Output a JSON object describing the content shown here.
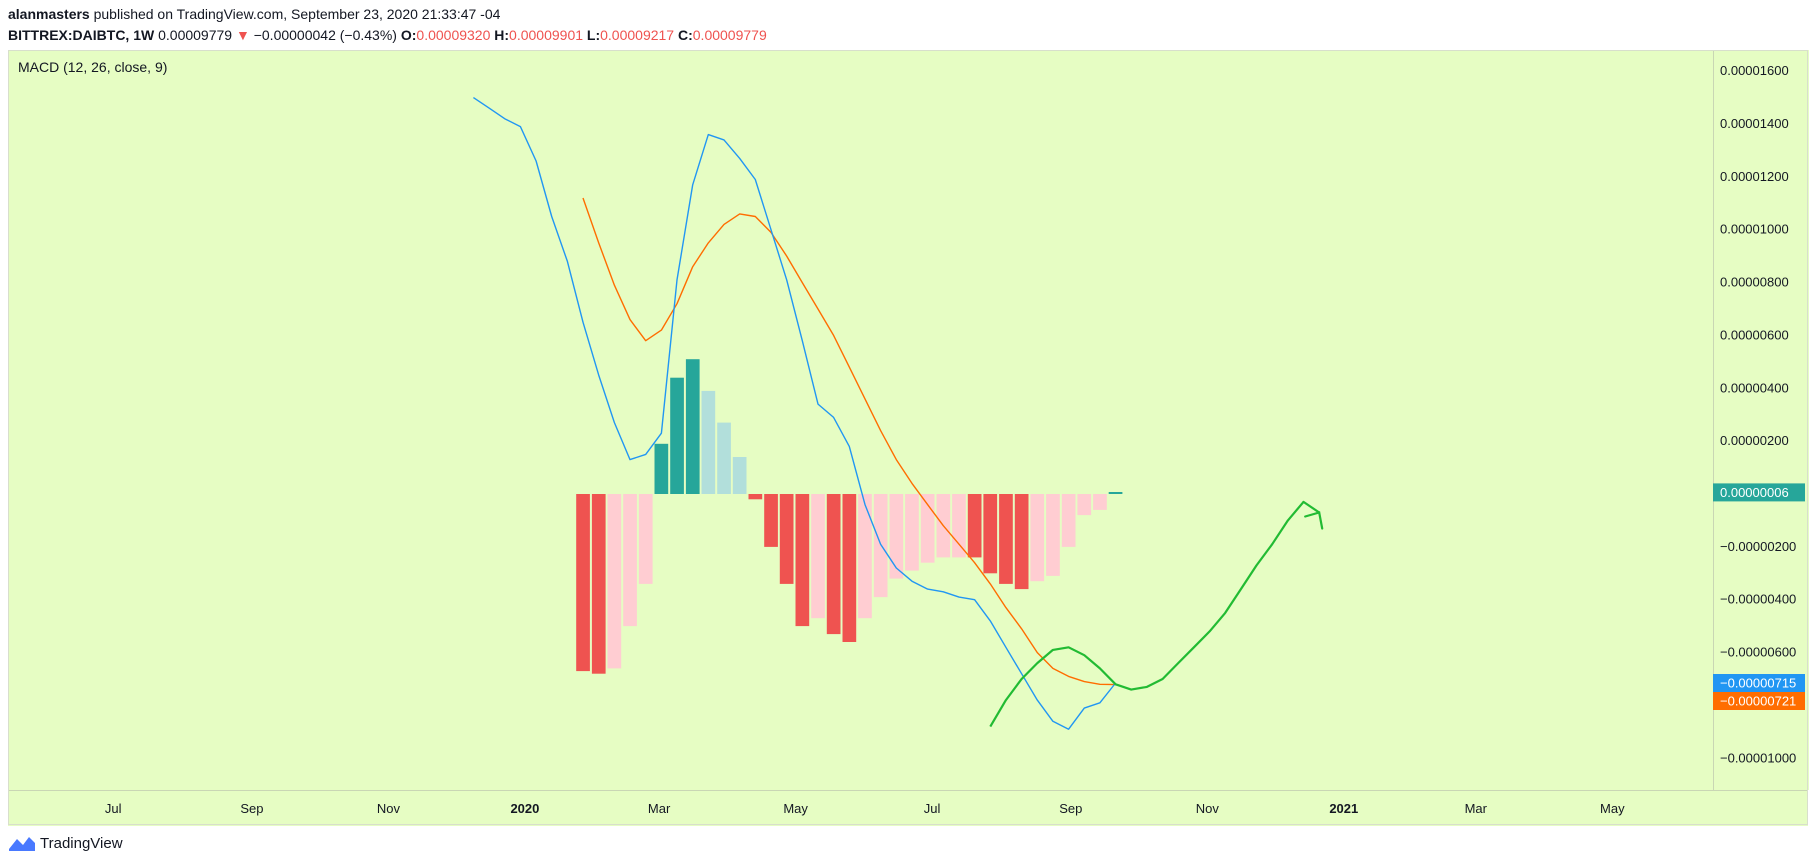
{
  "header": {
    "author": "alanmasters",
    "published_text": "published on TradingView.com, September 23, 2020 21:33:47 -04",
    "symbol": "BITTREX:DAIBTC, 1W",
    "last_price": "0.00009779",
    "change": "−0.00000042 (−0.43%)",
    "open_label": "O:",
    "open_value": "0.00009320",
    "high_label": "H:",
    "high_value": "0.00009901",
    "low_label": "L:",
    "low_value": "0.00009217",
    "close_label": "C:",
    "close_value": "0.00009779"
  },
  "indicator_label": "MACD (12, 26, close, 9)",
  "footer": {
    "brand": "TradingView"
  },
  "colors": {
    "background": "#e6fdc3",
    "macd_line": "#2196f3",
    "signal_line": "#ff6d00",
    "hist_up_strong": "#26a69a",
    "hist_up_weak": "#b2dfdb",
    "hist_down_strong": "#ef5350",
    "hist_down_weak": "#ffcdd2",
    "annotation": "#22bb33"
  },
  "chart_data": {
    "type": "line",
    "y_ticks": [
      {
        "value": 1.6e-05,
        "label": "0.00001600"
      },
      {
        "value": 1.4e-05,
        "label": "0.00001400"
      },
      {
        "value": 1.2e-05,
        "label": "0.00001200"
      },
      {
        "value": 1e-05,
        "label": "0.00001000"
      },
      {
        "value": 8e-06,
        "label": "0.00000800"
      },
      {
        "value": 6e-06,
        "label": "0.00000600"
      },
      {
        "value": 4e-06,
        "label": "0.00000400"
      },
      {
        "value": 2e-06,
        "label": "0.00000200"
      },
      {
        "value": -2e-06,
        "label": "−0.00000200"
      },
      {
        "value": -4e-06,
        "label": "−0.00000400"
      },
      {
        "value": -6e-06,
        "label": "−0.00000600"
      },
      {
        "value": -1e-05,
        "label": "−0.00001000"
      }
    ],
    "ylim": [
      -1.12e-05,
      1.68e-05
    ],
    "x_ticks": [
      {
        "date": "2019-07-01",
        "label": "Jul",
        "bold": false
      },
      {
        "date": "2019-09-01",
        "label": "Sep",
        "bold": false
      },
      {
        "date": "2019-11-01",
        "label": "Nov",
        "bold": false
      },
      {
        "date": "2020-01-01",
        "label": "2020",
        "bold": true
      },
      {
        "date": "2020-03-01",
        "label": "Mar",
        "bold": false
      },
      {
        "date": "2020-05-01",
        "label": "May",
        "bold": false
      },
      {
        "date": "2020-07-01",
        "label": "Jul",
        "bold": false
      },
      {
        "date": "2020-09-01",
        "label": "Sep",
        "bold": false
      },
      {
        "date": "2020-11-01",
        "label": "Nov",
        "bold": false
      },
      {
        "date": "2021-01-01",
        "label": "2021",
        "bold": true
      },
      {
        "date": "2021-03-01",
        "label": "Mar",
        "bold": false
      },
      {
        "date": "2021-05-01",
        "label": "May",
        "bold": false
      }
    ],
    "xlim": [
      "2019-05-15",
      "2021-06-15"
    ],
    "macd": {
      "dates": [
        "2019-12-09",
        "2019-12-16",
        "2019-12-23",
        "2019-12-30",
        "2020-01-06",
        "2020-01-13",
        "2020-01-20",
        "2020-01-27",
        "2020-02-03",
        "2020-02-10",
        "2020-02-17",
        "2020-02-24",
        "2020-03-02",
        "2020-03-09",
        "2020-03-16",
        "2020-03-23",
        "2020-03-30",
        "2020-04-06",
        "2020-04-13",
        "2020-04-20",
        "2020-04-27",
        "2020-05-04",
        "2020-05-11",
        "2020-05-18",
        "2020-05-25",
        "2020-06-01",
        "2020-06-08",
        "2020-06-15",
        "2020-06-22",
        "2020-06-29",
        "2020-07-06",
        "2020-07-13",
        "2020-07-20",
        "2020-07-27",
        "2020-08-03",
        "2020-08-10",
        "2020-08-17",
        "2020-08-24",
        "2020-08-31",
        "2020-09-07",
        "2020-09-14",
        "2020-09-21"
      ],
      "values": [
        1.5e-05,
        1.46e-05,
        1.42e-05,
        1.39e-05,
        1.26e-05,
        1.05e-05,
        8.8e-06,
        6.5e-06,
        4.5e-06,
        2.7e-06,
        1.3e-06,
        1.5e-06,
        2.3e-06,
        8.1e-06,
        1.17e-05,
        1.36e-05,
        1.34e-05,
        1.27e-05,
        1.19e-05,
        1e-05,
        8.1e-06,
        5.8e-06,
        3.4e-06,
        2.9e-06,
        1.8e-06,
        -4e-07,
        -1.9e-06,
        -2.8e-06,
        -3.3e-06,
        -3.6e-06,
        -3.7e-06,
        -3.9e-06,
        -4e-06,
        -4.8e-06,
        -5.8e-06,
        -6.8e-06,
        -7.8e-06,
        -8.6e-06,
        -8.9e-06,
        -8.1e-06,
        -7.9e-06,
        -7.15e-06
      ]
    },
    "signal": {
      "dates": [
        "2020-01-27",
        "2020-02-03",
        "2020-02-10",
        "2020-02-17",
        "2020-02-24",
        "2020-03-02",
        "2020-03-09",
        "2020-03-16",
        "2020-03-23",
        "2020-03-30",
        "2020-04-06",
        "2020-04-13",
        "2020-04-20",
        "2020-04-27",
        "2020-05-04",
        "2020-05-11",
        "2020-05-18",
        "2020-05-25",
        "2020-06-01",
        "2020-06-08",
        "2020-06-15",
        "2020-06-22",
        "2020-06-29",
        "2020-07-06",
        "2020-07-13",
        "2020-07-20",
        "2020-07-27",
        "2020-08-03",
        "2020-08-10",
        "2020-08-17",
        "2020-08-24",
        "2020-08-31",
        "2020-09-07",
        "2020-09-14",
        "2020-09-21"
      ],
      "values": [
        1.12e-05,
        9.5e-06,
        7.9e-06,
        6.6e-06,
        5.8e-06,
        6.2e-06,
        7.2e-06,
        8.6e-06,
        9.5e-06,
        1.02e-05,
        1.06e-05,
        1.05e-05,
        9.9e-06,
        9e-06,
        8e-06,
        7e-06,
        6e-06,
        4.8e-06,
        3.6e-06,
        2.4e-06,
        1.3e-06,
        4e-07,
        -4e-07,
        -1.2e-06,
        -1.9e-06,
        -2.6e-06,
        -3.4e-06,
        -4.3e-06,
        -5.1e-06,
        -6e-06,
        -6.6e-06,
        -6.9e-06,
        -7.1e-06,
        -7.2e-06,
        -7.21e-06
      ]
    },
    "histogram": {
      "dates": [
        "2020-01-27",
        "2020-02-03",
        "2020-02-10",
        "2020-02-17",
        "2020-02-24",
        "2020-03-02",
        "2020-03-09",
        "2020-03-16",
        "2020-03-23",
        "2020-03-30",
        "2020-04-06",
        "2020-04-13",
        "2020-04-20",
        "2020-04-27",
        "2020-05-04",
        "2020-05-11",
        "2020-05-18",
        "2020-05-25",
        "2020-06-01",
        "2020-06-08",
        "2020-06-15",
        "2020-06-22",
        "2020-06-29",
        "2020-07-06",
        "2020-07-13",
        "2020-07-20",
        "2020-07-27",
        "2020-08-03",
        "2020-08-10",
        "2020-08-17",
        "2020-08-24",
        "2020-08-31",
        "2020-09-07",
        "2020-09-14",
        "2020-09-21"
      ],
      "values": [
        -6.7e-06,
        -6.8e-06,
        -6.6e-06,
        -5e-06,
        -3.4e-06,
        1.9e-06,
        4.4e-06,
        5.1e-06,
        3.9e-06,
        2.7e-06,
        1.4e-06,
        -2e-07,
        -2e-06,
        -3.4e-06,
        -5e-06,
        -4.7e-06,
        -5.3e-06,
        -5.6e-06,
        -4.7e-06,
        -3.9e-06,
        -3.2e-06,
        -2.9e-06,
        -2.6e-06,
        -2.4e-06,
        -2.4e-06,
        -2.4e-06,
        -3e-06,
        -3.4e-06,
        -3.6e-06,
        -3.3e-06,
        -3.1e-06,
        -2e-06,
        -8e-07,
        -6e-07,
        6e-08
      ],
      "colors": [
        "down_strong",
        "down_strong",
        "down_weak",
        "down_weak",
        "down_weak",
        "up_strong",
        "up_strong",
        "up_strong",
        "up_weak",
        "up_weak",
        "up_weak",
        "down_strong",
        "down_strong",
        "down_strong",
        "down_strong",
        "down_weak",
        "down_strong",
        "down_strong",
        "down_weak",
        "down_weak",
        "down_weak",
        "down_weak",
        "down_weak",
        "down_weak",
        "down_weak",
        "down_strong",
        "down_strong",
        "down_strong",
        "down_strong",
        "down_weak",
        "down_weak",
        "down_weak",
        "down_weak",
        "down_weak",
        "up_strong"
      ]
    },
    "last_value_labels": [
      {
        "value": 6e-08,
        "label": "0.00000006",
        "color": "#26a69a"
      },
      {
        "value": -7.15e-06,
        "label": "−0.00000715",
        "color": "#2196f3"
      },
      {
        "value": -7.21e-06,
        "label": "−0.00000721",
        "color": "#ff6d00"
      }
    ],
    "annotation_curve": {
      "dates": [
        "2020-07-27",
        "2020-08-03",
        "2020-08-10",
        "2020-08-17",
        "2020-08-24",
        "2020-08-31",
        "2020-09-07",
        "2020-09-14",
        "2020-09-21",
        "2020-09-28",
        "2020-10-05",
        "2020-10-12",
        "2020-10-19",
        "2020-10-26",
        "2020-11-02",
        "2020-11-09",
        "2020-11-16",
        "2020-11-23",
        "2020-11-30",
        "2020-12-07",
        "2020-12-14"
      ],
      "values": [
        -8.8e-06,
        -7.8e-06,
        -7e-06,
        -6.4e-06,
        -5.9e-06,
        -5.8e-06,
        -6.1e-06,
        -6.6e-06,
        -7.2e-06,
        -7.4e-06,
        -7.3e-06,
        -7e-06,
        -6.4e-06,
        -5.8e-06,
        -5.2e-06,
        -4.5e-06,
        -3.6e-06,
        -2.7e-06,
        -1.9e-06,
        -1e-06,
        -3e-07
      ],
      "arrow_tip": {
        "date": "2020-12-21",
        "value": -7e-07
      }
    }
  }
}
